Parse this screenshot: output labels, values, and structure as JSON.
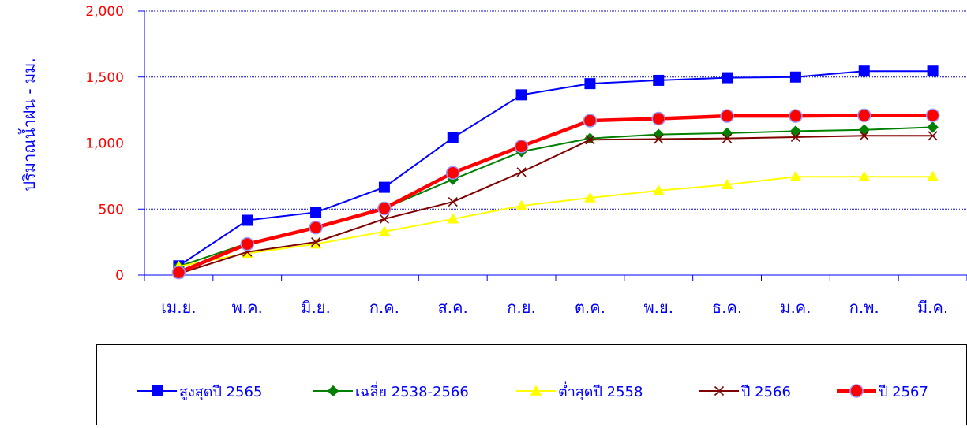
{
  "chart_data": {
    "type": "line",
    "title": "",
    "ylabel": "ปริมาณน้ำฝน - มม.",
    "xlabel": "",
    "categories": [
      "เม.ย.",
      "พ.ค.",
      "มิ.ย.",
      "ก.ค.",
      "ส.ค.",
      "ก.ย.",
      "ต.ค.",
      "พ.ย.",
      "ธ.ค.",
      "ม.ค.",
      "ก.พ.",
      "มี.ค."
    ],
    "ylim": [
      0,
      2000
    ],
    "yticks": [
      "0",
      "500",
      "1,000",
      "1,500",
      "2,000"
    ],
    "ytick_values": [
      0,
      500,
      1000,
      1500,
      2000
    ],
    "grid": true,
    "legend_position": "bottom",
    "series": [
      {
        "name": "สูงสุดปี 2565",
        "color": "#0000ff",
        "marker": "square",
        "values": [
          70,
          415,
          475,
          665,
          1040,
          1365,
          1450,
          1475,
          1495,
          1500,
          1545,
          1545
        ]
      },
      {
        "name": "เฉลี่ย 2538-2566",
        "color": "#008000",
        "marker": "diamond",
        "values": [
          65,
          240,
          355,
          505,
          725,
          935,
          1035,
          1065,
          1075,
          1090,
          1100,
          1120
        ]
      },
      {
        "name": "ต่ำสุดปี 2558",
        "color": "#ffff00",
        "marker": "triangle",
        "values": [
          65,
          165,
          235,
          330,
          425,
          525,
          585,
          640,
          685,
          745,
          745,
          745
        ]
      },
      {
        "name": "ปี 2566",
        "color": "#800000",
        "marker": "x",
        "values": [
          10,
          175,
          250,
          425,
          555,
          780,
          1025,
          1030,
          1035,
          1045,
          1055,
          1055
        ]
      },
      {
        "name": "ปี 2567",
        "color": "#ff0000",
        "marker": "circle",
        "values": [
          20,
          235,
          360,
          505,
          775,
          975,
          1170,
          1185,
          1205,
          1205,
          1210,
          1210
        ]
      }
    ]
  }
}
